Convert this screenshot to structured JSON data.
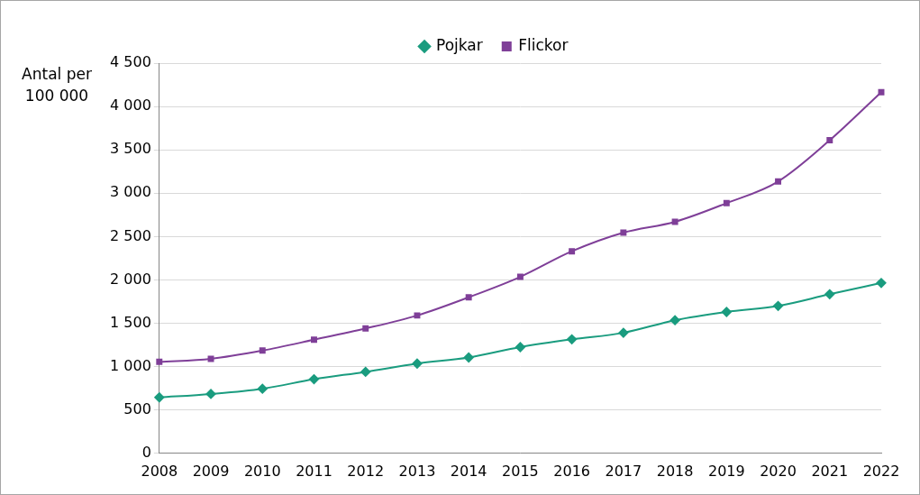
{
  "chart_data": {
    "type": "line",
    "y_label": [
      "Antal per",
      "100 000"
    ],
    "categories": [
      "2008",
      "2009",
      "2010",
      "2011",
      "2012",
      "2013",
      "2014",
      "2015",
      "2016",
      "2017",
      "2018",
      "2019",
      "2020",
      "2021",
      "2022"
    ],
    "series": [
      {
        "name": "Pojkar",
        "color": "#1a9c7f",
        "marker": "diamond",
        "line_style": "solid",
        "values": [
          645,
          685,
          745,
          855,
          940,
          1035,
          1105,
          1225,
          1315,
          1390,
          1535,
          1630,
          1700,
          1835,
          1965
        ]
      },
      {
        "name": "Flickor",
        "color": "#7f3f98",
        "marker": "square",
        "line_style": "solid",
        "values": [
          1055,
          1090,
          1185,
          1310,
          1440,
          1590,
          1800,
          2035,
          2330,
          2545,
          2670,
          2885,
          3135,
          3610,
          4165
        ]
      }
    ],
    "ylim": [
      0,
      4500
    ],
    "yticks": [
      0,
      500,
      {
        "value": 1000,
        "label": "1 000"
      },
      {
        "value": 1500,
        "label": "1 500"
      },
      {
        "value": 2000,
        "label": "2 000"
      },
      {
        "value": 2500,
        "label": "2 500"
      },
      {
        "value": 3000,
        "label": "3 000"
      },
      {
        "value": 3500,
        "label": "3 500"
      },
      {
        "value": 4000,
        "label": "4 000"
      },
      {
        "value": 4500,
        "label": "4 500"
      }
    ],
    "grid": true,
    "legend": "top"
  }
}
